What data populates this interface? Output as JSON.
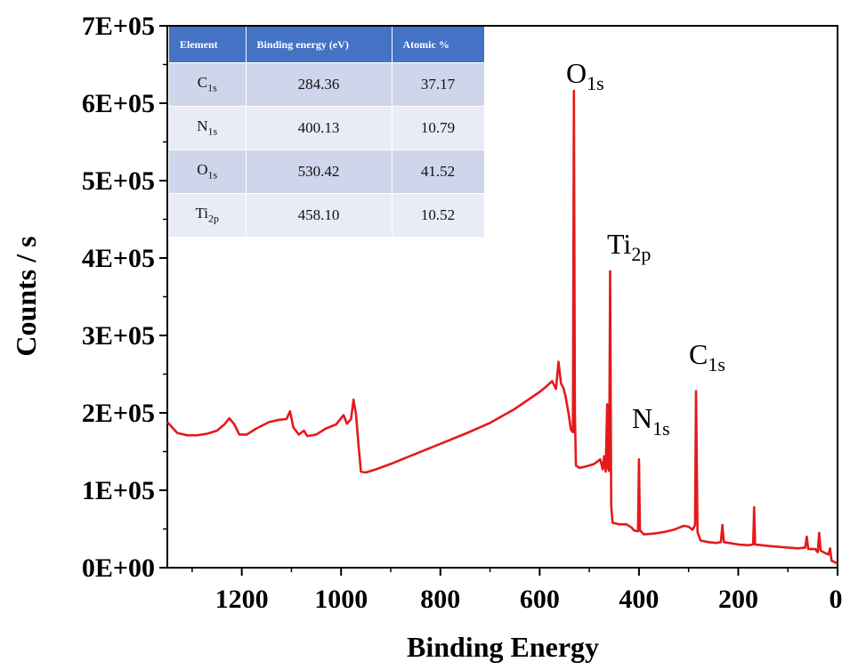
{
  "chart_data": {
    "type": "line",
    "title": "",
    "xlabel": "Binding Energy",
    "ylabel": "Counts / s",
    "xlim": [
      1350,
      0
    ],
    "ylim": [
      0,
      700000
    ],
    "x_reversed": true,
    "x_ticks": [
      1200,
      1000,
      800,
      600,
      400,
      200,
      0
    ],
    "x_tick_labels": [
      "1200",
      "1000",
      "800",
      "600",
      "400",
      "200",
      "0"
    ],
    "y_ticks": [
      0,
      100000,
      200000,
      300000,
      400000,
      500000,
      600000,
      700000
    ],
    "y_tick_labels": [
      "0E+00",
      "1E+05",
      "2E+05",
      "3E+05",
      "4E+05",
      "5E+05",
      "6E+05",
      "7E+05"
    ],
    "grid": false,
    "line_color": "#e31a1c",
    "series": [
      {
        "points": [
          [
            1350,
            188000
          ],
          [
            1340,
            181000
          ],
          [
            1330,
            174000
          ],
          [
            1310,
            171000
          ],
          [
            1290,
            171000
          ],
          [
            1270,
            173000
          ],
          [
            1250,
            177000
          ],
          [
            1235,
            185000
          ],
          [
            1225,
            193000
          ],
          [
            1215,
            185000
          ],
          [
            1205,
            172000
          ],
          [
            1190,
            172000
          ],
          [
            1170,
            180000
          ],
          [
            1145,
            188000
          ],
          [
            1125,
            191000
          ],
          [
            1110,
            192000
          ],
          [
            1103,
            202000
          ],
          [
            1096,
            181000
          ],
          [
            1085,
            172000
          ],
          [
            1075,
            177000
          ],
          [
            1068,
            170000
          ],
          [
            1050,
            172000
          ],
          [
            1030,
            180000
          ],
          [
            1010,
            185000
          ],
          [
            995,
            197000
          ],
          [
            988,
            186000
          ],
          [
            980,
            192000
          ],
          [
            975,
            217000
          ],
          [
            970,
            198000
          ],
          [
            965,
            160000
          ],
          [
            960,
            124000
          ],
          [
            950,
            123000
          ],
          [
            930,
            127000
          ],
          [
            900,
            134000
          ],
          [
            850,
            147000
          ],
          [
            800,
            160000
          ],
          [
            750,
            173000
          ],
          [
            700,
            187000
          ],
          [
            650,
            205000
          ],
          [
            600,
            227000
          ],
          [
            585,
            235000
          ],
          [
            575,
            241000
          ],
          [
            567,
            231000
          ],
          [
            562,
            266000
          ],
          [
            557,
            238000
          ],
          [
            552,
            232000
          ],
          [
            548,
            222000
          ],
          [
            542,
            200000
          ],
          [
            537,
            178000
          ],
          [
            533,
            175000
          ],
          [
            531,
            616000
          ],
          [
            529,
            200000
          ],
          [
            527,
            132000
          ],
          [
            520,
            129000
          ],
          [
            505,
            131000
          ],
          [
            490,
            134000
          ],
          [
            478,
            140000
          ],
          [
            473,
            127000
          ],
          [
            470,
            144000
          ],
          [
            467,
            124000
          ],
          [
            464,
            211000
          ],
          [
            462,
            128000
          ],
          [
            460,
            125000
          ],
          [
            458,
            383000
          ],
          [
            456,
            80000
          ],
          [
            453,
            58000
          ],
          [
            440,
            56000
          ],
          [
            425,
            56000
          ],
          [
            415,
            52000
          ],
          [
            410,
            48000
          ],
          [
            402,
            47000
          ],
          [
            400,
            140000
          ],
          [
            398,
            48000
          ],
          [
            390,
            43000
          ],
          [
            370,
            44000
          ],
          [
            350,
            46000
          ],
          [
            330,
            49000
          ],
          [
            310,
            54000
          ],
          [
            300,
            53000
          ],
          [
            292,
            49000
          ],
          [
            287,
            55000
          ],
          [
            285,
            228000
          ],
          [
            282,
            46000
          ],
          [
            276,
            35000
          ],
          [
            260,
            33000
          ],
          [
            245,
            32000
          ],
          [
            235,
            33000
          ],
          [
            232,
            55000
          ],
          [
            229,
            33000
          ],
          [
            200,
            30000
          ],
          [
            180,
            29000
          ],
          [
            170,
            30000
          ],
          [
            168,
            78000
          ],
          [
            166,
            30000
          ],
          [
            140,
            28000
          ],
          [
            100,
            26000
          ],
          [
            80,
            25000
          ],
          [
            65,
            26000
          ],
          [
            62,
            40000
          ],
          [
            59,
            24000
          ],
          [
            45,
            24000
          ],
          [
            40,
            20000
          ],
          [
            37,
            45000
          ],
          [
            34,
            22000
          ],
          [
            25,
            19000
          ],
          [
            18,
            17000
          ],
          [
            15,
            25000
          ],
          [
            12,
            9000
          ],
          [
            5,
            7000
          ],
          [
            0,
            5000
          ]
        ]
      }
    ],
    "annotations": [
      {
        "key": "O1s",
        "base": "O",
        "sub": "1s",
        "x": 531
      },
      {
        "key": "Ti2p",
        "base": "Ti",
        "sub": "2p",
        "x": 458
      },
      {
        "key": "N1s",
        "base": "N",
        "sub": "1s",
        "x": 400
      },
      {
        "key": "C1s",
        "base": "C",
        "sub": "1s",
        "x": 285
      }
    ]
  },
  "table": {
    "headers": [
      "Element",
      "Binding energy (eV)",
      "Atomic %"
    ],
    "rows": [
      {
        "base": "C",
        "sub": "1s",
        "energy": "284.36",
        "atomic": "37.17"
      },
      {
        "base": "N",
        "sub": "1s",
        "energy": "400.13",
        "atomic": "10.79"
      },
      {
        "base": "O",
        "sub": "1s",
        "energy": "530.42",
        "atomic": "41.52"
      },
      {
        "base": "Ti",
        "sub": "2p",
        "energy": "458.10",
        "atomic": "10.52"
      }
    ]
  }
}
